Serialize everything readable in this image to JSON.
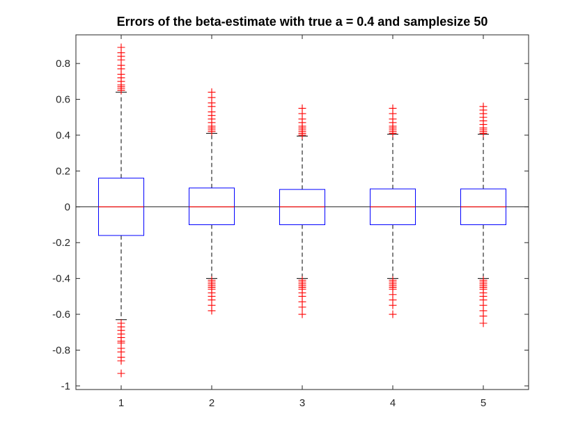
{
  "chart_data": {
    "type": "box",
    "title": "Errors of the beta-estimate with true a = 0.4 and samplesize 50",
    "xlabel": "",
    "ylabel": "",
    "categories": [
      "1",
      "2",
      "3",
      "4",
      "5"
    ],
    "ylim": [
      -1.02,
      0.96
    ],
    "yticks": [
      -1,
      -0.8,
      -0.6,
      -0.4,
      -0.2,
      0,
      0.2,
      0.4,
      0.6,
      0.8
    ],
    "ytick_labels": [
      "-1",
      "-0.8",
      "-0.6",
      "-0.4",
      "-0.2",
      "0",
      "0.2",
      "0.4",
      "0.6",
      "0.8"
    ],
    "reference_line_y": 0,
    "boxes": [
      {
        "category": "1",
        "q1": -0.16,
        "median": 0.0,
        "q3": 0.16,
        "whisker_low": -0.63,
        "whisker_high": 0.64,
        "outliers_high": [
          0.65,
          0.66,
          0.67,
          0.68,
          0.7,
          0.72,
          0.74,
          0.77,
          0.79,
          0.82,
          0.84,
          0.86,
          0.89
        ],
        "outliers_low": [
          -0.65,
          -0.67,
          -0.69,
          -0.71,
          -0.73,
          -0.75,
          -0.76,
          -0.79,
          -0.81,
          -0.84,
          -0.86,
          -0.93
        ]
      },
      {
        "category": "2",
        "q1": -0.1,
        "median": 0.0,
        "q3": 0.105,
        "whisker_low": -0.4,
        "whisker_high": 0.41,
        "outliers_high": [
          0.42,
          0.43,
          0.44,
          0.45,
          0.47,
          0.49,
          0.51,
          0.53,
          0.56,
          0.58,
          0.61,
          0.64
        ],
        "outliers_low": [
          -0.41,
          -0.42,
          -0.43,
          -0.44,
          -0.45,
          -0.46,
          -0.48,
          -0.5,
          -0.52,
          -0.55,
          -0.58
        ]
      },
      {
        "category": "3",
        "q1": -0.1,
        "median": 0.0,
        "q3": 0.097,
        "whisker_low": -0.4,
        "whisker_high": 0.395,
        "outliers_high": [
          0.4,
          0.41,
          0.42,
          0.43,
          0.44,
          0.45,
          0.47,
          0.49,
          0.52,
          0.55
        ],
        "outliers_low": [
          -0.41,
          -0.42,
          -0.43,
          -0.44,
          -0.45,
          -0.46,
          -0.48,
          -0.5,
          -0.53,
          -0.56,
          -0.6
        ]
      },
      {
        "category": "4",
        "q1": -0.1,
        "median": 0.0,
        "q3": 0.1,
        "whisker_low": -0.4,
        "whisker_high": 0.405,
        "outliers_high": [
          0.41,
          0.42,
          0.43,
          0.44,
          0.45,
          0.47,
          0.49,
          0.52,
          0.55
        ],
        "outliers_low": [
          -0.41,
          -0.42,
          -0.43,
          -0.44,
          -0.45,
          -0.46,
          -0.49,
          -0.52,
          -0.55,
          -0.6
        ]
      },
      {
        "category": "5",
        "q1": -0.1,
        "median": 0.0,
        "q3": 0.1,
        "whisker_low": -0.4,
        "whisker_high": 0.405,
        "outliers_high": [
          0.41,
          0.42,
          0.43,
          0.44,
          0.46,
          0.48,
          0.5,
          0.52,
          0.54,
          0.56
        ],
        "outliers_low": [
          -0.41,
          -0.42,
          -0.43,
          -0.44,
          -0.45,
          -0.46,
          -0.48,
          -0.5,
          -0.52,
          -0.55,
          -0.58,
          -0.61,
          -0.65
        ]
      }
    ],
    "grid": false,
    "legend": "none"
  },
  "colors": {
    "box": "#0000ff",
    "median": "#ff0000",
    "outlier": "#ff0000",
    "whisker": "#000000",
    "axis": "#262626",
    "reference_line": "#000000"
  }
}
